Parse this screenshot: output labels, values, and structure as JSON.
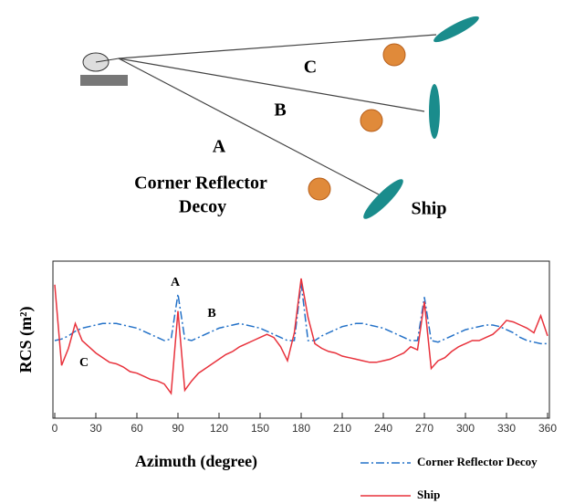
{
  "diagram": {
    "labels": [
      "C",
      "B",
      "A"
    ],
    "decoy_label": [
      "Corner Reflector",
      "Decoy"
    ],
    "ship_label": "Ship"
  },
  "chart_data": {
    "type": "line",
    "xlabel": "Azimuth (degree)",
    "ylabel": "RCS (m²)",
    "annotations": [
      "A",
      "B",
      "C"
    ],
    "xlim": [
      0,
      360
    ],
    "xticks": [
      0,
      30,
      60,
      90,
      120,
      150,
      180,
      210,
      240,
      270,
      300,
      330,
      360
    ],
    "ylim": [
      0,
      10
    ],
    "x": [
      0,
      5,
      10,
      15,
      20,
      25,
      30,
      35,
      40,
      45,
      50,
      55,
      60,
      65,
      70,
      75,
      80,
      85,
      90,
      95,
      100,
      105,
      110,
      115,
      120,
      125,
      130,
      135,
      140,
      145,
      150,
      155,
      160,
      165,
      170,
      175,
      180,
      185,
      190,
      195,
      200,
      205,
      210,
      215,
      220,
      225,
      230,
      235,
      240,
      245,
      250,
      255,
      260,
      265,
      270,
      275,
      280,
      285,
      290,
      295,
      300,
      305,
      310,
      315,
      320,
      325,
      330,
      335,
      340,
      345,
      350,
      355,
      360
    ],
    "series": [
      {
        "name": "Corner Reflector Decoy",
        "color": "#2472c8",
        "linestyle": "dash-dot",
        "values": [
          5.0,
          5.1,
          5.3,
          5.6,
          5.8,
          5.9,
          6.0,
          6.1,
          6.1,
          6.1,
          6.0,
          5.9,
          5.8,
          5.6,
          5.4,
          5.2,
          5.0,
          5.1,
          8.0,
          5.1,
          5.0,
          5.2,
          5.4,
          5.6,
          5.8,
          5.9,
          6.0,
          6.1,
          6.0,
          5.9,
          5.8,
          5.6,
          5.4,
          5.2,
          5.0,
          5.0,
          8.7,
          5.0,
          5.0,
          5.3,
          5.5,
          5.7,
          5.9,
          6.0,
          6.1,
          6.1,
          6.0,
          5.9,
          5.8,
          5.6,
          5.4,
          5.2,
          5.0,
          5.0,
          7.8,
          5.0,
          4.9,
          5.1,
          5.3,
          5.5,
          5.7,
          5.8,
          5.9,
          6.0,
          6.0,
          5.9,
          5.7,
          5.5,
          5.2,
          5.0,
          4.9,
          4.8,
          4.8
        ]
      },
      {
        "name": "Ship",
        "color": "#e8323c",
        "linestyle": "solid",
        "values": [
          8.6,
          3.4,
          4.5,
          6.1,
          5.0,
          4.6,
          4.2,
          3.9,
          3.6,
          3.5,
          3.3,
          3.0,
          2.9,
          2.7,
          2.5,
          2.4,
          2.2,
          1.6,
          6.9,
          1.8,
          2.4,
          2.9,
          3.2,
          3.5,
          3.8,
          4.1,
          4.3,
          4.6,
          4.8,
          5.0,
          5.2,
          5.4,
          5.2,
          4.6,
          3.7,
          5.5,
          9.0,
          6.5,
          4.8,
          4.5,
          4.3,
          4.2,
          4.0,
          3.9,
          3.8,
          3.7,
          3.6,
          3.6,
          3.7,
          3.8,
          4.0,
          4.2,
          4.6,
          4.4,
          7.5,
          3.2,
          3.7,
          3.9,
          4.3,
          4.6,
          4.8,
          5.0,
          5.0,
          5.2,
          5.4,
          5.8,
          6.3,
          6.2,
          6.0,
          5.8,
          5.5,
          6.6,
          5.3
        ]
      }
    ]
  }
}
